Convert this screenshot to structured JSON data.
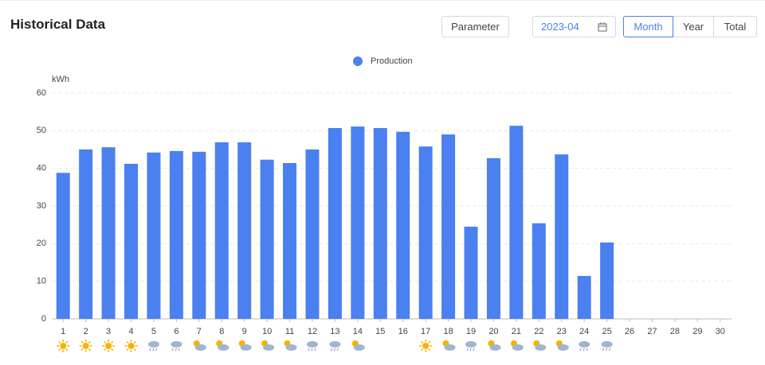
{
  "header": {
    "title": "Historical Data",
    "parameter": "Parameter",
    "date": "2023-04",
    "periods": [
      "Month",
      "Year",
      "Total"
    ]
  },
  "chart_data": {
    "type": "bar",
    "y_label": "kWh",
    "categories": [
      "1",
      "2",
      "3",
      "4",
      "5",
      "6",
      "7",
      "8",
      "9",
      "10",
      "11",
      "12",
      "13",
      "14",
      "15",
      "16",
      "17",
      "18",
      "19",
      "20",
      "21",
      "22",
      "23",
      "24",
      "25",
      "26",
      "27",
      "28",
      "29",
      "30"
    ],
    "series": [
      {
        "name": "Production",
        "color": "#4a80f0",
        "values": [
          38.8,
          45.0,
          45.6,
          41.2,
          44.2,
          44.6,
          44.4,
          46.9,
          46.9,
          42.3,
          41.4,
          45.0,
          50.7,
          51.1,
          50.7,
          49.7,
          45.8,
          49.0,
          24.5,
          42.7,
          51.3,
          25.4,
          43.7,
          11.4,
          20.3,
          null,
          null,
          null,
          null,
          null
        ]
      }
    ],
    "ylim": [
      0,
      60
    ],
    "yticks": [
      0,
      10,
      20,
      30,
      40,
      50,
      60
    ],
    "grid": true,
    "legend": "top"
  }
}
